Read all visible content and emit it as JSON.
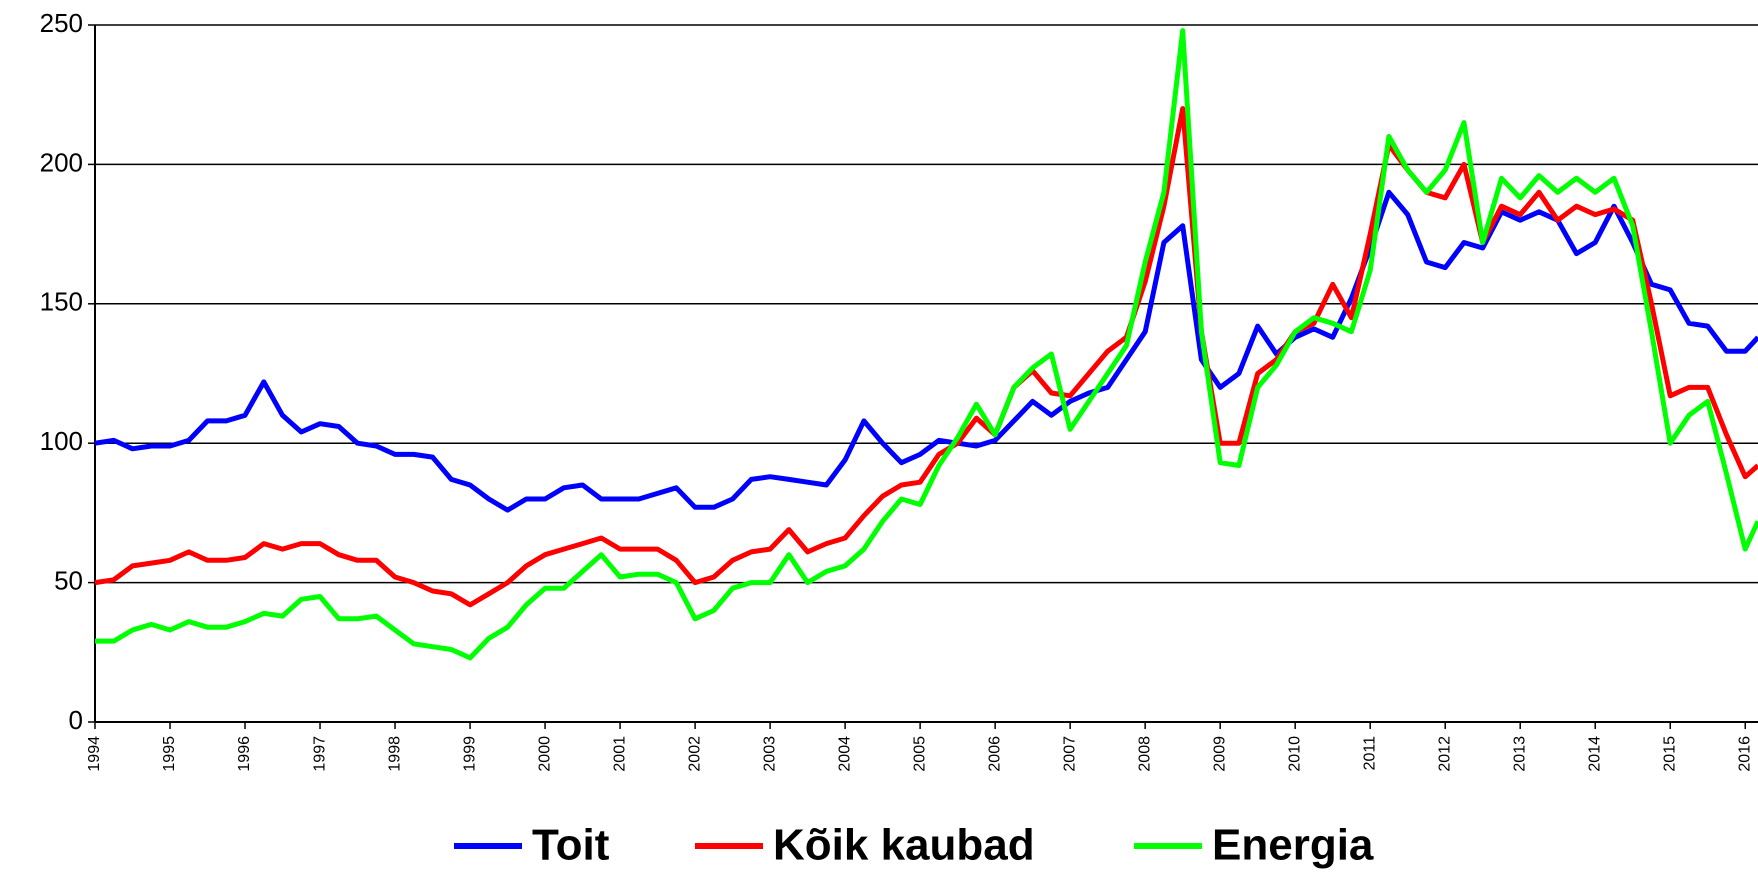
{
  "chart_data": {
    "type": "line",
    "x": [
      1994,
      1994.25,
      1994.5,
      1994.75,
      1995,
      1995.25,
      1995.5,
      1995.75,
      1996,
      1996.25,
      1996.5,
      1996.75,
      1997,
      1997.25,
      1997.5,
      1997.75,
      1998,
      1998.25,
      1998.5,
      1998.75,
      1999,
      1999.25,
      1999.5,
      1999.75,
      2000,
      2000.25,
      2000.5,
      2000.75,
      2001,
      2001.25,
      2001.5,
      2001.75,
      2002,
      2002.25,
      2002.5,
      2002.75,
      2003,
      2003.25,
      2003.5,
      2003.75,
      2004,
      2004.25,
      2004.5,
      2004.75,
      2005,
      2005.25,
      2005.5,
      2005.75,
      2006,
      2006.25,
      2006.5,
      2006.75,
      2007,
      2007.25,
      2007.5,
      2007.75,
      2008,
      2008.25,
      2008.5,
      2008.75,
      2009,
      2009.25,
      2009.5,
      2009.75,
      2010,
      2010.25,
      2010.5,
      2010.75,
      2011,
      2011.25,
      2011.5,
      2011.75,
      2012,
      2012.25,
      2012.5,
      2012.75,
      2013,
      2013.25,
      2013.5,
      2013.75,
      2014,
      2014.25,
      2014.5,
      2014.75,
      2015,
      2015.25,
      2015.5,
      2015.75,
      2016,
      2016.17
    ],
    "series": [
      {
        "name": "Toit",
        "color": "#0000ff",
        "values": [
          100,
          101,
          98,
          99,
          99,
          101,
          108,
          108,
          110,
          122,
          110,
          104,
          107,
          106,
          100,
          99,
          96,
          96,
          95,
          87,
          85,
          80,
          76,
          80,
          80,
          84,
          85,
          80,
          80,
          80,
          82,
          84,
          77,
          77,
          80,
          87,
          88,
          87,
          86,
          85,
          94,
          108,
          100,
          93,
          96,
          101,
          100,
          99,
          101,
          108,
          115,
          110,
          115,
          118,
          120,
          130,
          140,
          172,
          178,
          130,
          120,
          125,
          142,
          132,
          138,
          141,
          138,
          152,
          170,
          190,
          182,
          165,
          163,
          172,
          170,
          183,
          180,
          183,
          180,
          168,
          172,
          185,
          172,
          157,
          155,
          143,
          142,
          133,
          133,
          138
        ]
      },
      {
        "name": "Kõik kaubad",
        "color": "#ff0000",
        "values": [
          50,
          51,
          56,
          57,
          58,
          61,
          58,
          58,
          59,
          64,
          62,
          64,
          64,
          60,
          58,
          58,
          52,
          50,
          47,
          46,
          42,
          46,
          50,
          56,
          60,
          62,
          64,
          66,
          62,
          62,
          62,
          58,
          50,
          52,
          58,
          61,
          62,
          69,
          61,
          64,
          66,
          74,
          81,
          85,
          86,
          96,
          100,
          109,
          103,
          120,
          126,
          118,
          117,
          125,
          133,
          138,
          158,
          185,
          220,
          140,
          100,
          100,
          125,
          130,
          140,
          143,
          157,
          145,
          175,
          207,
          198,
          190,
          188,
          200,
          172,
          185,
          182,
          190,
          180,
          185,
          182,
          184,
          180,
          150,
          117,
          120,
          120,
          103,
          88,
          92
        ]
      },
      {
        "name": "Energia",
        "color": "#00ff00",
        "values": [
          29,
          29,
          33,
          35,
          33,
          36,
          34,
          34,
          36,
          39,
          38,
          44,
          45,
          37,
          37,
          38,
          33,
          28,
          27,
          26,
          23,
          30,
          34,
          42,
          48,
          48,
          54,
          60,
          52,
          53,
          53,
          50,
          37,
          40,
          48,
          50,
          50,
          60,
          50,
          54,
          56,
          62,
          72,
          80,
          78,
          92,
          102,
          114,
          103,
          120,
          127,
          132,
          105,
          115,
          125,
          135,
          165,
          190,
          248,
          140,
          93,
          92,
          120,
          128,
          140,
          145,
          143,
          140,
          162,
          210,
          198,
          190,
          198,
          215,
          172,
          195,
          188,
          196,
          190,
          195,
          190,
          195,
          178,
          140,
          100,
          110,
          115,
          89,
          62,
          72
        ]
      }
    ],
    "xlim": [
      1994,
      2016.17
    ],
    "xticks": [
      1994,
      1995,
      1996,
      1997,
      1998,
      1999,
      2000,
      2001,
      2002,
      2003,
      2004,
      2005,
      2006,
      2007,
      2008,
      2009,
      2010,
      2011,
      2012,
      2013,
      2014,
      2015,
      2016
    ],
    "ylim": [
      0,
      250
    ],
    "yticks": [
      0,
      50,
      100,
      150,
      200,
      250
    ],
    "grid": true,
    "legend": "bottom"
  }
}
